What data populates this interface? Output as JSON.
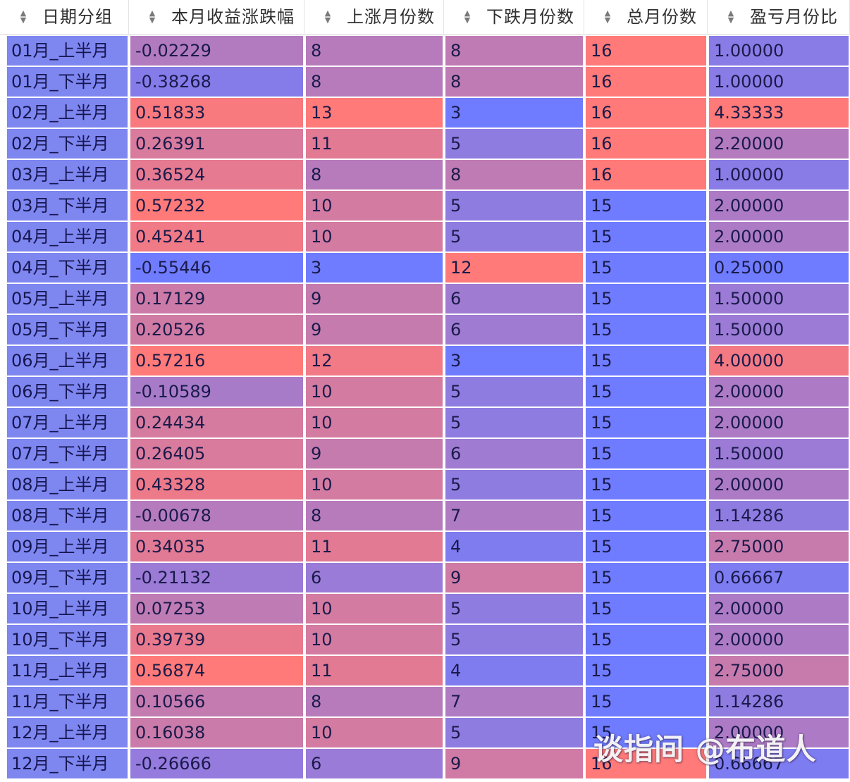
{
  "table": {
    "columns": [
      {
        "label": "日期分组",
        "icon": "sort-icon"
      },
      {
        "label": "本月收益涨跌幅",
        "icon": "sort-icon"
      },
      {
        "label": "上涨月份数",
        "icon": "sort-icon"
      },
      {
        "label": "下跌月份数",
        "icon": "sort-icon"
      },
      {
        "label": "总月份数",
        "icon": "sort-icon"
      },
      {
        "label": "盈亏月份比",
        "icon": "sort-icon"
      }
    ],
    "rows": [
      {
        "date": "01月_上半月",
        "ret": "-0.02229",
        "up": "8",
        "down": "8",
        "total": "16",
        "ratio": "1.00000"
      },
      {
        "date": "01月_下半月",
        "ret": "-0.38268",
        "up": "8",
        "down": "8",
        "total": "16",
        "ratio": "1.00000"
      },
      {
        "date": "02月_上半月",
        "ret": "0.51833",
        "up": "13",
        "down": "3",
        "total": "16",
        "ratio": "4.33333"
      },
      {
        "date": "02月_下半月",
        "ret": "0.26391",
        "up": "11",
        "down": "5",
        "total": "16",
        "ratio": "2.20000"
      },
      {
        "date": "03月_上半月",
        "ret": "0.36524",
        "up": "8",
        "down": "8",
        "total": "16",
        "ratio": "1.00000"
      },
      {
        "date": "03月_下半月",
        "ret": "0.57232",
        "up": "10",
        "down": "5",
        "total": "15",
        "ratio": "2.00000"
      },
      {
        "date": "04月_上半月",
        "ret": "0.45241",
        "up": "10",
        "down": "5",
        "total": "15",
        "ratio": "2.00000"
      },
      {
        "date": "04月_下半月",
        "ret": "-0.55446",
        "up": "3",
        "down": "12",
        "total": "15",
        "ratio": "0.25000"
      },
      {
        "date": "05月_上半月",
        "ret": "0.17129",
        "up": "9",
        "down": "6",
        "total": "15",
        "ratio": "1.50000"
      },
      {
        "date": "05月_下半月",
        "ret": "0.20526",
        "up": "9",
        "down": "6",
        "total": "15",
        "ratio": "1.50000"
      },
      {
        "date": "06月_上半月",
        "ret": "0.57216",
        "up": "12",
        "down": "3",
        "total": "15",
        "ratio": "4.00000"
      },
      {
        "date": "06月_下半月",
        "ret": "-0.10589",
        "up": "10",
        "down": "5",
        "total": "15",
        "ratio": "2.00000"
      },
      {
        "date": "07月_上半月",
        "ret": "0.24434",
        "up": "10",
        "down": "5",
        "total": "15",
        "ratio": "2.00000"
      },
      {
        "date": "07月_下半月",
        "ret": "0.26405",
        "up": "9",
        "down": "6",
        "total": "15",
        "ratio": "1.50000"
      },
      {
        "date": "08月_上半月",
        "ret": "0.43328",
        "up": "10",
        "down": "5",
        "total": "15",
        "ratio": "2.00000"
      },
      {
        "date": "08月_下半月",
        "ret": "-0.00678",
        "up": "8",
        "down": "7",
        "total": "15",
        "ratio": "1.14286"
      },
      {
        "date": "09月_上半月",
        "ret": "0.34035",
        "up": "11",
        "down": "4",
        "total": "15",
        "ratio": "2.75000"
      },
      {
        "date": "09月_下半月",
        "ret": "-0.21132",
        "up": "6",
        "down": "9",
        "total": "15",
        "ratio": "0.66667"
      },
      {
        "date": "10月_上半月",
        "ret": "0.07253",
        "up": "10",
        "down": "5",
        "total": "15",
        "ratio": "2.00000"
      },
      {
        "date": "10月_下半月",
        "ret": "0.39739",
        "up": "10",
        "down": "5",
        "total": "15",
        "ratio": "2.00000"
      },
      {
        "date": "11月_上半月",
        "ret": "0.56874",
        "up": "11",
        "down": "4",
        "total": "15",
        "ratio": "2.75000"
      },
      {
        "date": "11月_下半月",
        "ret": "0.10566",
        "up": "8",
        "down": "7",
        "total": "15",
        "ratio": "1.14286"
      },
      {
        "date": "12月_上半月",
        "ret": "0.16038",
        "up": "10",
        "down": "5",
        "total": "15",
        "ratio": "2.00000"
      },
      {
        "date": "12月_下半月",
        "ret": "-0.26666",
        "up": "6",
        "down": "9",
        "total": "16",
        "ratio": "0.66667"
      }
    ]
  },
  "colors": {
    "low": "#6f7cff",
    "high": "#ff7a78",
    "date_column": "#7e86f0",
    "header_bg": "#ffffff",
    "header_text": "#2f2f2f",
    "grid_line": "#f4f4fb"
  },
  "watermark": {
    "text": "谈指间 @布道人"
  }
}
